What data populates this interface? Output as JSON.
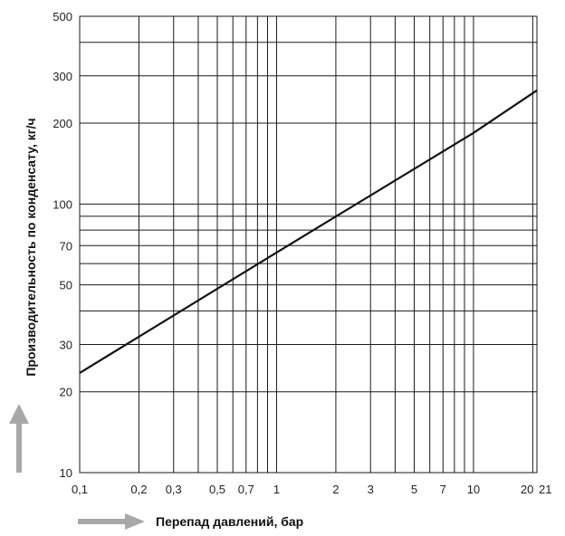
{
  "chart_data": {
    "type": "line",
    "xscale": "log",
    "yscale": "log",
    "xlim": [
      0.1,
      21
    ],
    "ylim": [
      10,
      500
    ],
    "grid": true,
    "xlabel": "Перепад давлений, бар",
    "ylabel": "Производительность по конденсату, кг/ч",
    "x_ticks": [
      {
        "value": 0.1,
        "label": "0,1"
      },
      {
        "value": 0.2,
        "label": "0,2"
      },
      {
        "value": 0.3,
        "label": "0,3"
      },
      {
        "value": 0.5,
        "label": "0,5"
      },
      {
        "value": 0.7,
        "label": "0,7"
      },
      {
        "value": 1,
        "label": "1"
      },
      {
        "value": 2,
        "label": "2"
      },
      {
        "value": 3,
        "label": "3"
      },
      {
        "value": 5,
        "label": "5"
      },
      {
        "value": 7,
        "label": "7"
      },
      {
        "value": 10,
        "label": "10"
      },
      {
        "value": 20,
        "label": "20"
      },
      {
        "value": 21,
        "label": "21"
      }
    ],
    "y_ticks": [
      {
        "value": 10,
        "label": "10"
      },
      {
        "value": 20,
        "label": "20"
      },
      {
        "value": 30,
        "label": "30"
      },
      {
        "value": 50,
        "label": "50"
      },
      {
        "value": 70,
        "label": "70"
      },
      {
        "value": 100,
        "label": "100"
      },
      {
        "value": 200,
        "label": "200"
      },
      {
        "value": 300,
        "label": "300"
      },
      {
        "value": 500,
        "label": "500"
      }
    ],
    "x_grid": [
      0.2,
      0.3,
      0.4,
      0.5,
      0.6,
      0.7,
      0.8,
      0.9,
      1,
      2,
      3,
      4,
      5,
      6,
      7,
      8,
      9,
      10,
      20
    ],
    "y_grid": [
      20,
      30,
      40,
      50,
      60,
      70,
      80,
      90,
      100,
      200,
      300,
      400
    ],
    "series": [
      {
        "points": [
          [
            0.1,
            23.5
          ],
          [
            1,
            66
          ],
          [
            10,
            184
          ],
          [
            21,
            265
          ]
        ]
      }
    ],
    "colors": {
      "line": "#111111",
      "grid": "#1a1a1a",
      "arrow": "#a8a8a8"
    }
  }
}
